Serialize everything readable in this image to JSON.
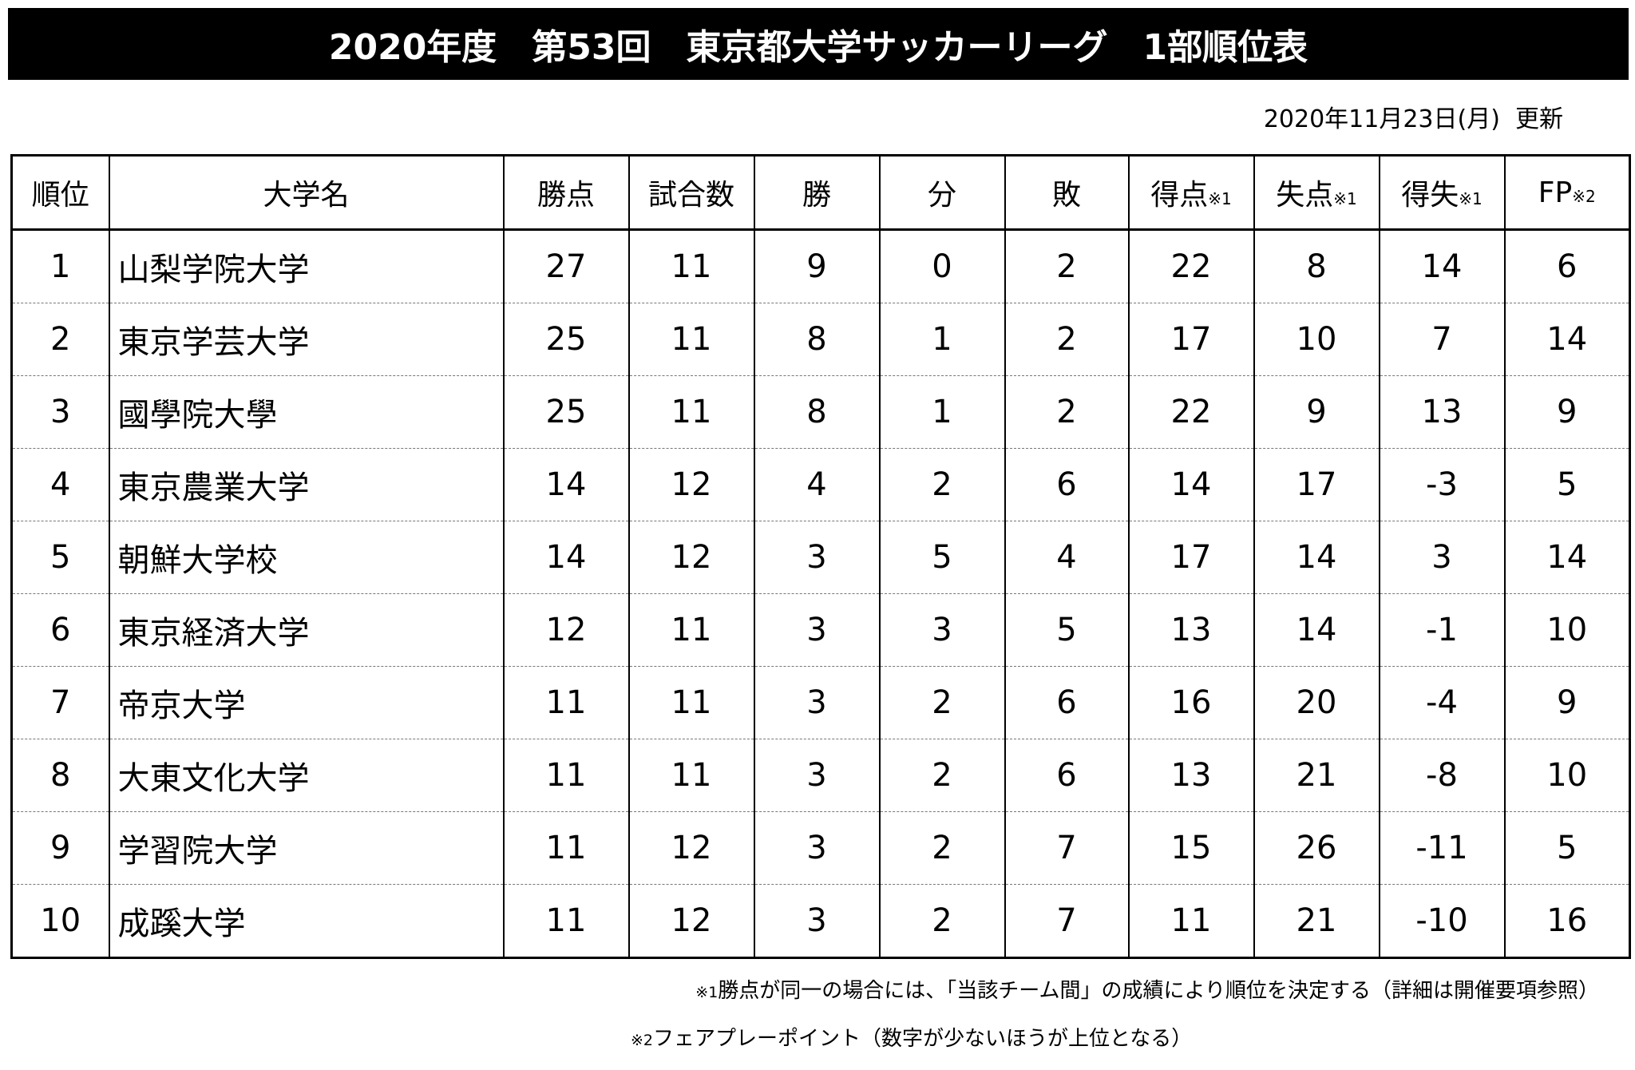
{
  "header": {
    "title": "2020年度　第53回　東京都大学サッカーリーグ　1部順位表",
    "updated": "2020年11月23日(月)  更新"
  },
  "table": {
    "columns": [
      {
        "label": "順位"
      },
      {
        "label": "大学名"
      },
      {
        "label": "勝点"
      },
      {
        "label": "試合数"
      },
      {
        "label": "勝"
      },
      {
        "label": "分"
      },
      {
        "label": "敗"
      },
      {
        "label": "得点",
        "note": "※1"
      },
      {
        "label": "失点",
        "note": "※1"
      },
      {
        "label": "得失",
        "note": "※1"
      },
      {
        "label": "FP",
        "note": "※2"
      }
    ],
    "rows": [
      [
        1,
        "山梨学院大学",
        27,
        11,
        9,
        0,
        2,
        22,
        8,
        14,
        6
      ],
      [
        2,
        "東京学芸大学",
        25,
        11,
        8,
        1,
        2,
        17,
        10,
        7,
        14
      ],
      [
        3,
        "國學院大學",
        25,
        11,
        8,
        1,
        2,
        22,
        9,
        13,
        9
      ],
      [
        4,
        "東京農業大学",
        14,
        12,
        4,
        2,
        6,
        14,
        17,
        -3,
        5
      ],
      [
        5,
        "朝鮮大学校",
        14,
        12,
        3,
        5,
        4,
        17,
        14,
        3,
        14
      ],
      [
        6,
        "東京経済大学",
        12,
        11,
        3,
        3,
        5,
        13,
        14,
        -1,
        10
      ],
      [
        7,
        "帝京大学",
        11,
        11,
        3,
        2,
        6,
        16,
        20,
        -4,
        9
      ],
      [
        8,
        "大東文化大学",
        11,
        11,
        3,
        2,
        6,
        13,
        21,
        -8,
        10
      ],
      [
        9,
        "学習院大学",
        11,
        12,
        3,
        2,
        7,
        15,
        26,
        -11,
        5
      ],
      [
        10,
        "成蹊大学",
        11,
        12,
        3,
        2,
        7,
        11,
        21,
        -10,
        16
      ]
    ]
  },
  "footnotes": [
    {
      "mark": "※1",
      "text": "勝点が同一の場合には、「当該チーム間」の成績により順位を決定する（詳細は開催要項参照）"
    },
    {
      "mark": "※2",
      "text": "フェアプレーポイント（数字が少ないほうが上位となる）"
    }
  ]
}
